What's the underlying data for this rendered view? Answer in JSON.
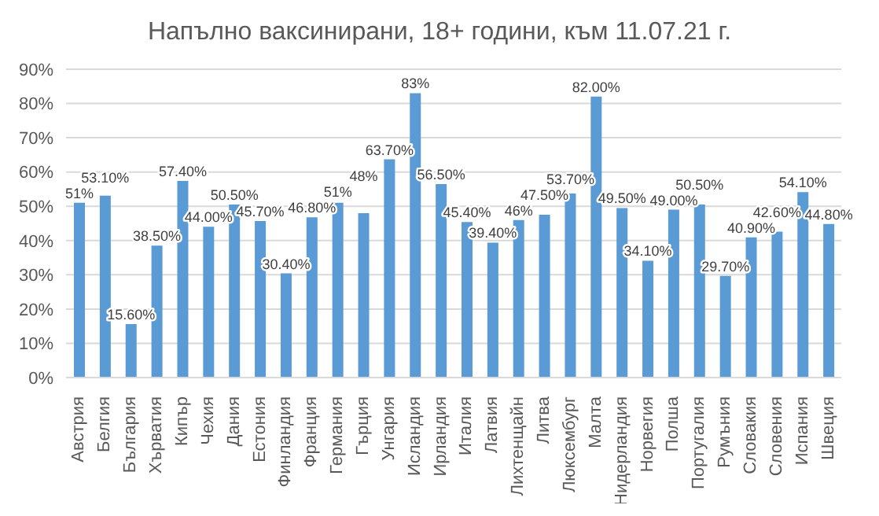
{
  "chart_data": {
    "type": "bar",
    "title": "Напълно ваксинирани, 18+ години, към 11.07.21 г.",
    "categories": [
      "Австрия",
      "Белгия",
      "България",
      "Хърватия",
      "Кипър",
      "Чехия",
      "Дания",
      "Естония",
      "Финландия",
      "Франция",
      "Германия",
      "Гърция",
      "Унгария",
      "Исландия",
      "Ирландия",
      "Италия",
      "Латвия",
      "Лихтенщайн",
      "Литва",
      "Люксембург",
      "Малта",
      "Нидерландия",
      "Норвегия",
      "Полша",
      "Португалия",
      "Румъния",
      "Словакия",
      "Словения",
      "Испания",
      "Швеция"
    ],
    "values": [
      51,
      53.1,
      15.6,
      38.5,
      57.4,
      44,
      50.5,
      45.7,
      30.4,
      46.8,
      51,
      48,
      63.7,
      83,
      56.5,
      45.4,
      39.4,
      46,
      47.5,
      53.7,
      82,
      49.5,
      34.1,
      49,
      50.5,
      29.7,
      40.9,
      42.6,
      54.1,
      44.8
    ],
    "value_labels": [
      "51%",
      "53.10%",
      "15.60%",
      "38.50%",
      "57.40%",
      "44.00%",
      "50.50%",
      "45.70%",
      "30.40%",
      "46.80%",
      "51%",
      "48%",
      "63.70%",
      "83%",
      "56.50%",
      "45.40%",
      "39.40%",
      "46%",
      "47.50%",
      "53.70%",
      "82.00%",
      "49.50%",
      "34.10%",
      "49.00%",
      "50.50%",
      "29.70%",
      "40.90%",
      "42.60%",
      "54.10%",
      "44.80%"
    ],
    "color": "#5b9bd5",
    "ylim": [
      0,
      90
    ],
    "yticks": [
      {
        "value": 0,
        "label": "0%"
      },
      {
        "value": 10,
        "label": "10%"
      },
      {
        "value": 20,
        "label": "20%"
      },
      {
        "value": 30,
        "label": "30%"
      },
      {
        "value": 40,
        "label": "40%"
      },
      {
        "value": 50,
        "label": "50%"
      },
      {
        "value": 60,
        "label": "60%"
      },
      {
        "value": 70,
        "label": "70%"
      },
      {
        "value": 80,
        "label": "80%"
      },
      {
        "value": 90,
        "label": "90%"
      }
    ],
    "grid": "y",
    "legend": false
  }
}
